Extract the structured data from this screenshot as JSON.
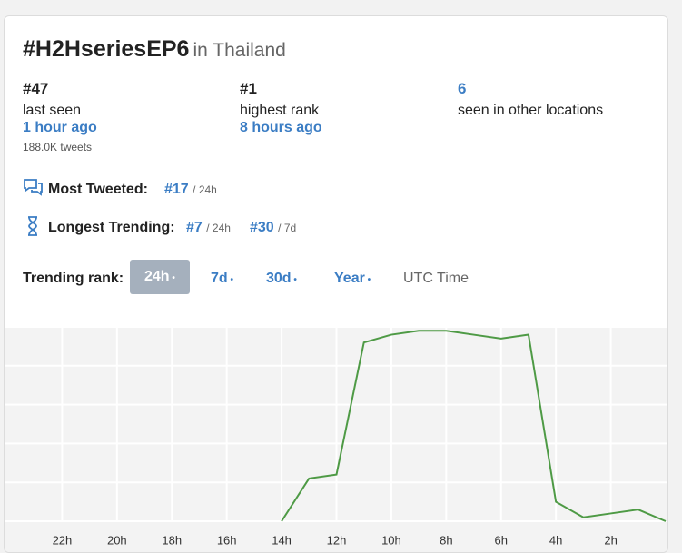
{
  "header": {
    "hashtag": "#H2HseriesEP6",
    "location": "in Thailand"
  },
  "stats": [
    {
      "value": "#47",
      "label": "last seen",
      "time": "1 hour ago",
      "extra": "188.0K tweets"
    },
    {
      "value": "#1",
      "label": "highest rank",
      "time": "8 hours ago"
    },
    {
      "value": "6",
      "label": "seen in other locations"
    }
  ],
  "most_tweeted": {
    "label": "Most Tweeted:",
    "rank": "#17",
    "period": "/ 24h"
  },
  "longest_trending": {
    "label": "Longest Trending:",
    "items": [
      {
        "rank": "#7",
        "period": "/ 24h"
      },
      {
        "rank": "#30",
        "period": "/ 7d"
      }
    ]
  },
  "tabs": {
    "label": "Trending rank:",
    "items": [
      "24h",
      "7d",
      "30d",
      "Year"
    ],
    "timezone": "UTC Time"
  },
  "chart": {
    "type": "line",
    "color": "#4e9a45",
    "x": [
      14,
      13,
      12,
      11,
      10,
      9,
      8,
      7,
      6,
      5,
      4,
      3,
      2,
      1,
      0
    ],
    "values": [
      50,
      39,
      38,
      4,
      2,
      1,
      1,
      2,
      3,
      2,
      45,
      49,
      48,
      47,
      50
    ],
    "xlim": [
      24,
      0
    ],
    "ylim": [
      50,
      0
    ],
    "xticks": [
      {
        "value": 22,
        "label": "22h"
      },
      {
        "value": 20,
        "label": "20h"
      },
      {
        "value": 18,
        "label": "18h"
      },
      {
        "value": 16,
        "label": "16h"
      },
      {
        "value": 14,
        "label": "14h"
      },
      {
        "value": 12,
        "label": "12h"
      },
      {
        "value": 10,
        "label": "10h"
      },
      {
        "value": 8,
        "label": "8h"
      },
      {
        "value": 6,
        "label": "6h"
      },
      {
        "value": 4,
        "label": "4h"
      },
      {
        "value": 2,
        "label": "2h"
      }
    ],
    "yticks": [
      0,
      10,
      20,
      30,
      40,
      50
    ],
    "grid": true
  }
}
